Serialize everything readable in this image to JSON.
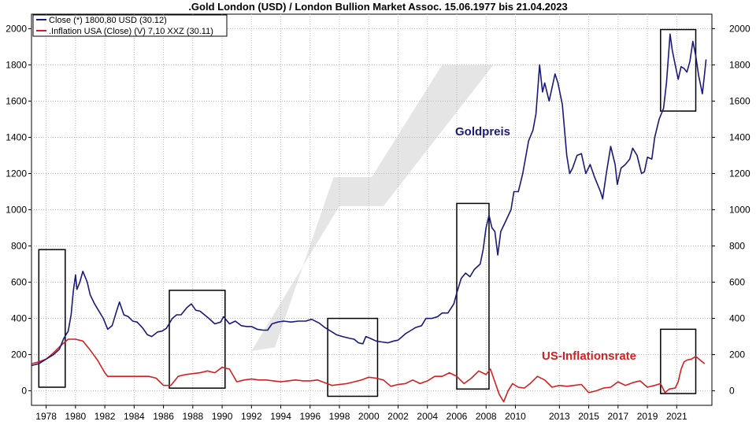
{
  "chart_data": {
    "type": "line",
    "title": ".Gold London (USD) / London Bullion Market Assoc. 15.06.1977 bis 21.04.2023",
    "x_range": [
      1977.0,
      2023.4
    ],
    "ylim": [
      -80,
      2080
    ],
    "y_ticks": [
      "0",
      "200",
      "400",
      "600",
      "800",
      "1000",
      "1200",
      "1400",
      "1600",
      "1800",
      "2000"
    ],
    "x_ticks": [
      "1978",
      "1980",
      "1982",
      "1984",
      "1986",
      "1988",
      "1990",
      "1992",
      "1994",
      "1996",
      "1998",
      "2000",
      "2002",
      "2004",
      "2006",
      "2008",
      "2010",
      "2013",
      "2015",
      "2017",
      "2019",
      "2021"
    ],
    "grid": true,
    "legend_position": "top-left",
    "legend": [
      "Close (*) 1800,80 USD (30.12)",
      ".Inflation USA (Close) (V) 7,10 XXZ (30.11)"
    ],
    "annotations": {
      "gold": "Goldpreis",
      "inflation": "US-Inflationsrate"
    },
    "colors": {
      "gold": "#1a1a7a",
      "inflation": "#d42020",
      "grid": "#b8b8b8",
      "band": "#e0e0e0"
    },
    "series": [
      {
        "name": "Close (*) 1800,80 USD (30.12)",
        "points": [
          [
            1977.0,
            140
          ],
          [
            1977.5,
            150
          ],
          [
            1978.0,
            175
          ],
          [
            1978.5,
            200
          ],
          [
            1978.9,
            230
          ],
          [
            1979.2,
            290
          ],
          [
            1979.5,
            330
          ],
          [
            1979.7,
            420
          ],
          [
            1979.85,
            550
          ],
          [
            1980.0,
            640
          ],
          [
            1980.1,
            560
          ],
          [
            1980.3,
            600
          ],
          [
            1980.5,
            660
          ],
          [
            1980.8,
            600
          ],
          [
            1981.0,
            530
          ],
          [
            1981.3,
            480
          ],
          [
            1981.6,
            440
          ],
          [
            1981.9,
            400
          ],
          [
            1982.2,
            340
          ],
          [
            1982.5,
            360
          ],
          [
            1982.8,
            440
          ],
          [
            1983.0,
            490
          ],
          [
            1983.3,
            420
          ],
          [
            1983.6,
            410
          ],
          [
            1983.9,
            385
          ],
          [
            1984.2,
            380
          ],
          [
            1984.6,
            345
          ],
          [
            1984.9,
            310
          ],
          [
            1985.2,
            300
          ],
          [
            1985.6,
            325
          ],
          [
            1985.9,
            330
          ],
          [
            1986.2,
            345
          ],
          [
            1986.6,
            400
          ],
          [
            1986.9,
            420
          ],
          [
            1987.2,
            420
          ],
          [
            1987.6,
            460
          ],
          [
            1987.9,
            480
          ],
          [
            1988.2,
            445
          ],
          [
            1988.5,
            440
          ],
          [
            1988.8,
            420
          ],
          [
            1989.1,
            400
          ],
          [
            1989.5,
            370
          ],
          [
            1989.9,
            380
          ],
          [
            1990.1,
            410
          ],
          [
            1990.5,
            370
          ],
          [
            1990.9,
            385
          ],
          [
            1991.3,
            360
          ],
          [
            1991.7,
            355
          ],
          [
            1992.0,
            355
          ],
          [
            1992.4,
            340
          ],
          [
            1992.8,
            335
          ],
          [
            1993.1,
            335
          ],
          [
            1993.4,
            370
          ],
          [
            1993.8,
            380
          ],
          [
            1994.2,
            385
          ],
          [
            1994.7,
            380
          ],
          [
            1995.2,
            385
          ],
          [
            1995.7,
            385
          ],
          [
            1996.1,
            395
          ],
          [
            1996.6,
            375
          ],
          [
            1997.0,
            350
          ],
          [
            1997.4,
            330
          ],
          [
            1997.8,
            310
          ],
          [
            1998.2,
            300
          ],
          [
            1998.7,
            290
          ],
          [
            1999.0,
            285
          ],
          [
            1999.3,
            265
          ],
          [
            1999.6,
            260
          ],
          [
            1999.8,
            300
          ],
          [
            2000.1,
            290
          ],
          [
            2000.5,
            275
          ],
          [
            2000.9,
            270
          ],
          [
            2001.3,
            265
          ],
          [
            2001.7,
            275
          ],
          [
            2002.0,
            280
          ],
          [
            2002.5,
            315
          ],
          [
            2002.9,
            335
          ],
          [
            2003.2,
            350
          ],
          [
            2003.6,
            360
          ],
          [
            2003.9,
            400
          ],
          [
            2004.3,
            400
          ],
          [
            2004.7,
            410
          ],
          [
            2005.0,
            430
          ],
          [
            2005.4,
            430
          ],
          [
            2005.8,
            480
          ],
          [
            2006.0,
            540
          ],
          [
            2006.3,
            620
          ],
          [
            2006.6,
            650
          ],
          [
            2006.9,
            630
          ],
          [
            2007.2,
            670
          ],
          [
            2007.6,
            700
          ],
          [
            2007.8,
            780
          ],
          [
            2008.0,
            900
          ],
          [
            2008.2,
            970
          ],
          [
            2008.4,
            900
          ],
          [
            2008.6,
            880
          ],
          [
            2008.8,
            750
          ],
          [
            2009.0,
            880
          ],
          [
            2009.3,
            930
          ],
          [
            2009.7,
            1000
          ],
          [
            2009.9,
            1100
          ],
          [
            2010.2,
            1100
          ],
          [
            2010.5,
            1200
          ],
          [
            2010.9,
            1380
          ],
          [
            2011.2,
            1440
          ],
          [
            2011.4,
            1530
          ],
          [
            2011.65,
            1800
          ],
          [
            2011.85,
            1650
          ],
          [
            2012.0,
            1700
          ],
          [
            2012.3,
            1600
          ],
          [
            2012.7,
            1750
          ],
          [
            2012.9,
            1700
          ],
          [
            2013.2,
            1580
          ],
          [
            2013.5,
            1300
          ],
          [
            2013.7,
            1200
          ],
          [
            2013.9,
            1230
          ],
          [
            2014.2,
            1300
          ],
          [
            2014.5,
            1310
          ],
          [
            2014.8,
            1200
          ],
          [
            2015.1,
            1250
          ],
          [
            2015.4,
            1180
          ],
          [
            2015.8,
            1100
          ],
          [
            2015.95,
            1060
          ],
          [
            2016.2,
            1200
          ],
          [
            2016.5,
            1350
          ],
          [
            2016.8,
            1250
          ],
          [
            2016.95,
            1140
          ],
          [
            2017.2,
            1230
          ],
          [
            2017.5,
            1250
          ],
          [
            2017.8,
            1280
          ],
          [
            2018.0,
            1340
          ],
          [
            2018.3,
            1300
          ],
          [
            2018.6,
            1200
          ],
          [
            2018.8,
            1210
          ],
          [
            2019.0,
            1290
          ],
          [
            2019.3,
            1280
          ],
          [
            2019.5,
            1400
          ],
          [
            2019.8,
            1500
          ],
          [
            2020.1,
            1560
          ],
          [
            2020.3,
            1700
          ],
          [
            2020.55,
            1970
          ],
          [
            2020.7,
            1880
          ],
          [
            2020.9,
            1800
          ],
          [
            2021.1,
            1720
          ],
          [
            2021.3,
            1790
          ],
          [
            2021.5,
            1780
          ],
          [
            2021.7,
            1760
          ],
          [
            2021.9,
            1820
          ],
          [
            2022.1,
            1930
          ],
          [
            2022.3,
            1850
          ],
          [
            2022.5,
            1740
          ],
          [
            2022.75,
            1640
          ],
          [
            2022.9,
            1750
          ],
          [
            2023.0,
            1830
          ]
        ]
      },
      {
        "name": ".Inflation USA (Close) (V) 7,10 XXZ (30.11)",
        "points": [
          [
            1977.0,
            150
          ],
          [
            1977.5,
            160
          ],
          [
            1978.0,
            175
          ],
          [
            1978.5,
            210
          ],
          [
            1979.0,
            250
          ],
          [
            1979.5,
            285
          ],
          [
            1980.0,
            285
          ],
          [
            1980.5,
            275
          ],
          [
            1981.0,
            225
          ],
          [
            1981.5,
            170
          ],
          [
            1982.0,
            100
          ],
          [
            1982.2,
            80
          ],
          [
            1983.0,
            80
          ],
          [
            1984.0,
            80
          ],
          [
            1985.0,
            80
          ],
          [
            1985.5,
            70
          ],
          [
            1986.0,
            30
          ],
          [
            1986.5,
            30
          ],
          [
            1987.0,
            80
          ],
          [
            1987.5,
            90
          ],
          [
            1988.0,
            95
          ],
          [
            1988.5,
            100
          ],
          [
            1989.0,
            110
          ],
          [
            1989.5,
            100
          ],
          [
            1990.0,
            130
          ],
          [
            1990.5,
            120
          ],
          [
            1991.0,
            50
          ],
          [
            1991.5,
            60
          ],
          [
            1992.0,
            65
          ],
          [
            1992.5,
            60
          ],
          [
            1993.0,
            60
          ],
          [
            1993.5,
            55
          ],
          [
            1994.0,
            50
          ],
          [
            1994.5,
            55
          ],
          [
            1995.0,
            60
          ],
          [
            1995.5,
            55
          ],
          [
            1996.0,
            55
          ],
          [
            1996.5,
            60
          ],
          [
            1997.0,
            45
          ],
          [
            1997.5,
            30
          ],
          [
            1998.0,
            35
          ],
          [
            1998.5,
            40
          ],
          [
            1999.0,
            50
          ],
          [
            1999.5,
            60
          ],
          [
            2000.0,
            75
          ],
          [
            2000.5,
            70
          ],
          [
            2001.0,
            60
          ],
          [
            2001.5,
            25
          ],
          [
            2002.0,
            35
          ],
          [
            2002.5,
            40
          ],
          [
            2003.0,
            60
          ],
          [
            2003.5,
            40
          ],
          [
            2004.0,
            55
          ],
          [
            2004.5,
            80
          ],
          [
            2005.0,
            80
          ],
          [
            2005.5,
            100
          ],
          [
            2006.0,
            80
          ],
          [
            2006.5,
            40
          ],
          [
            2007.0,
            70
          ],
          [
            2007.5,
            110
          ],
          [
            2008.0,
            90
          ],
          [
            2008.3,
            120
          ],
          [
            2008.6,
            50
          ],
          [
            2008.9,
            -20
          ],
          [
            2009.2,
            -60
          ],
          [
            2009.5,
            0
          ],
          [
            2009.8,
            40
          ],
          [
            2010.2,
            20
          ],
          [
            2010.6,
            15
          ],
          [
            2011.0,
            40
          ],
          [
            2011.5,
            80
          ],
          [
            2012.0,
            60
          ],
          [
            2012.5,
            20
          ],
          [
            2013.0,
            30
          ],
          [
            2013.5,
            25
          ],
          [
            2014.0,
            30
          ],
          [
            2014.5,
            35
          ],
          [
            2015.0,
            -10
          ],
          [
            2015.5,
            0
          ],
          [
            2016.0,
            15
          ],
          [
            2016.5,
            20
          ],
          [
            2017.0,
            50
          ],
          [
            2017.5,
            30
          ],
          [
            2018.0,
            45
          ],
          [
            2018.5,
            55
          ],
          [
            2019.0,
            20
          ],
          [
            2019.5,
            30
          ],
          [
            2019.9,
            40
          ],
          [
            2020.2,
            -10
          ],
          [
            2020.5,
            10
          ],
          [
            2020.9,
            15
          ],
          [
            2021.1,
            50
          ],
          [
            2021.3,
            120
          ],
          [
            2021.5,
            160
          ],
          [
            2021.7,
            170
          ],
          [
            2022.0,
            175
          ],
          [
            2022.3,
            190
          ],
          [
            2022.6,
            170
          ],
          [
            2022.9,
            150
          ]
        ]
      }
    ],
    "highlight_boxes": [
      {
        "x": [
          1977.5,
          1979.3
        ],
        "y": [
          20,
          780
        ]
      },
      {
        "x": [
          1986.4,
          1990.2
        ],
        "y": [
          15,
          555
        ]
      },
      {
        "x": [
          1997.2,
          2000.6
        ],
        "y": [
          -30,
          400
        ]
      },
      {
        "x": [
          2006.0,
          2008.2
        ],
        "y": [
          10,
          1035
        ]
      },
      {
        "x": [
          2019.9,
          2022.3
        ],
        "y": [
          -15,
          340
        ]
      },
      {
        "x": [
          2019.9,
          2022.3
        ],
        "y": [
          1545,
          1995
        ]
      }
    ],
    "trend_band": [
      [
        1992.0,
        220
      ],
      [
        1998.0,
        1020
      ],
      [
        2001.0,
        1020
      ],
      [
        2008.5,
        1800
      ],
      [
        2005.0,
        1800
      ],
      [
        2000.2,
        1180
      ],
      [
        1997.6,
        1180
      ],
      [
        1993.6,
        240
      ]
    ]
  }
}
